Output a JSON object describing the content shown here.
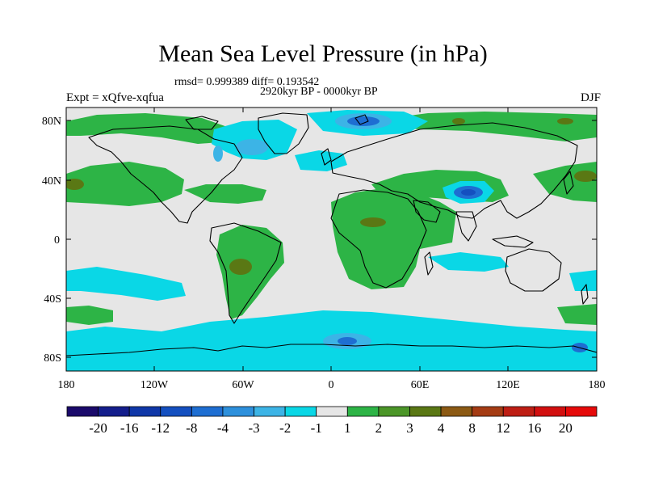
{
  "title": "Mean Sea Level Pressure (in hPa)",
  "stats_line": "rmsd= 0.999389 diff= 0.193542",
  "period_line": "2920kyr BP - 0000kyr BP",
  "experiment_label": "Expt = xQfve-xqfua",
  "season_label": "DJF",
  "axes": {
    "lat_ticks": [
      "80N",
      "40N",
      "0",
      "40S",
      "80S"
    ],
    "lon_ticks": [
      "180",
      "120W",
      "60W",
      "0",
      "60E",
      "120E",
      "180"
    ]
  },
  "colorbar": {
    "labels": [
      "-20",
      "-16",
      "-12",
      "-8",
      "-4",
      "-3",
      "-2",
      "-1",
      "1",
      "2",
      "3",
      "4",
      "8",
      "12",
      "16",
      "20"
    ],
    "colors": [
      "#1a0a6b",
      "#141e8c",
      "#0f37a8",
      "#1450c0",
      "#1e6ed2",
      "#2d90dc",
      "#3cb4e6",
      "#0ad7e6",
      "#e6e6e6",
      "#2db446",
      "#4b9628",
      "#5a7814",
      "#8c5a14",
      "#a53c14",
      "#be1e14",
      "#d20f0f",
      "#e60a0a"
    ]
  },
  "colors": {
    "background": "#e6e6e6",
    "positive_light": "#2db446",
    "positive_mid": "#4b9628",
    "positive_dark": "#5a7814",
    "negative_light": "#0ad7e6",
    "negative_mid": "#3cb4e6",
    "negative_dark": "#1e6ed2",
    "negative_darker": "#1450c0"
  }
}
